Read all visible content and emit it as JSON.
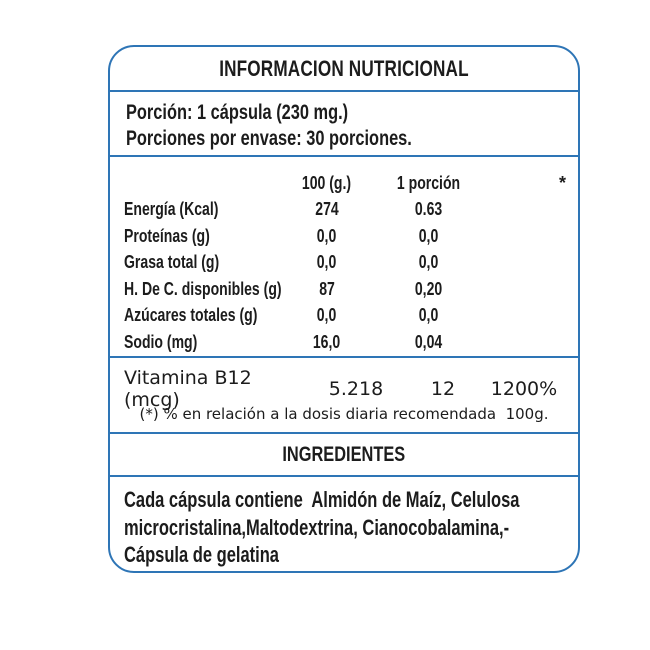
{
  "colors": {
    "border_blue": "#2e75b6",
    "text": "#1c1c1c",
    "background": "#ffffff"
  },
  "title": "INFORMACION NUTRICIONAL",
  "serving": {
    "line1": "Porción: 1 cápsula (230 mg.)",
    "line2": "Porciones por envase: 30 porciones."
  },
  "table": {
    "col_headers": {
      "per100": "100 (g.)",
      "per_portion": "1 porción",
      "asterisk": "*"
    },
    "rows": [
      {
        "label": "Energía (Kcal)",
        "per100": "274",
        "portion": "0.63"
      },
      {
        "label": "Proteínas (g)",
        "per100": "0,0",
        "portion": "0,0"
      },
      {
        "label": "Grasa total (g)",
        "per100": "0,0",
        "portion": "0,0"
      },
      {
        "label": "H. De C. disponibles (g)",
        "per100": "87",
        "portion": "0,20"
      },
      {
        "label": "Azúcares totales (g)",
        "per100": "0,0",
        "portion": "0,0"
      },
      {
        "label": "Sodio (mg)",
        "per100": "16,0",
        "portion": "0,04"
      }
    ]
  },
  "vitamin_row": {
    "label": "Vitamina B12 (mcg)",
    "per100": "5.218",
    "portion": "12",
    "daily_pct": "1200%"
  },
  "footnote": "(*) % en relación a la dosis diaria recomendada  100g.",
  "ingredients": {
    "header": "INGREDIENTES",
    "lines": [
      "Cada cápsula contiene  Almidón de Maíz, Celulosa",
      "microcristalina,Maltodextrina, Cianocobalamina,-",
      "Cápsula de gelatina"
    ]
  }
}
